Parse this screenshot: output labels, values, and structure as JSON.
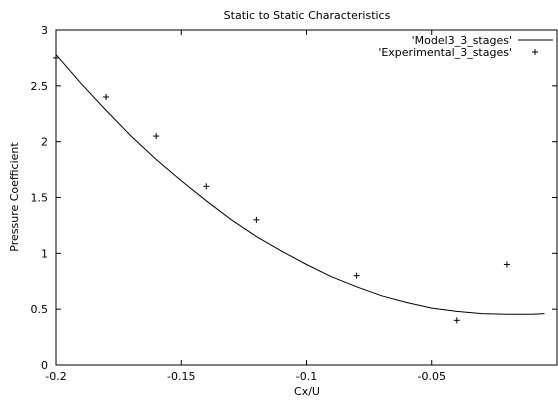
{
  "chart_data": {
    "type": "line",
    "title": "Static to Static Characteristics",
    "xlabel": "Cx/U",
    "ylabel": "Pressure Coefficient",
    "xlim": [
      -0.2,
      0.0
    ],
    "ylim": [
      0,
      3
    ],
    "x_ticks": [
      -0.2,
      -0.15,
      -0.1,
      -0.05
    ],
    "x_tick_labels": [
      "-0.2",
      "-0.15",
      "-0.1",
      "-0.05"
    ],
    "y_ticks": [
      0,
      0.5,
      1,
      1.5,
      2,
      2.5,
      3
    ],
    "y_tick_labels": [
      "0",
      "0.5",
      "1",
      "1.5",
      "2",
      "2.5",
      "3"
    ],
    "grid": false,
    "legend_position": "top-right",
    "series": [
      {
        "name": "'Model3_3_stages'",
        "style": "line",
        "color": "#000000",
        "x": [
          -0.2,
          -0.19,
          -0.18,
          -0.17,
          -0.16,
          -0.15,
          -0.14,
          -0.13,
          -0.12,
          -0.11,
          -0.1,
          -0.09,
          -0.08,
          -0.07,
          -0.06,
          -0.05,
          -0.04,
          -0.03,
          -0.02,
          -0.01,
          -0.005
        ],
        "values": [
          2.78,
          2.52,
          2.28,
          2.05,
          1.84,
          1.65,
          1.47,
          1.3,
          1.15,
          1.02,
          0.9,
          0.79,
          0.7,
          0.62,
          0.56,
          0.51,
          0.48,
          0.46,
          0.455,
          0.455,
          0.46
        ]
      },
      {
        "name": "'Experimental_3_stages'",
        "style": "points",
        "marker": "+",
        "color": "#000000",
        "x": [
          -0.2,
          -0.18,
          -0.16,
          -0.14,
          -0.12,
          -0.08,
          -0.04,
          -0.02
        ],
        "values": [
          2.75,
          2.4,
          2.05,
          1.6,
          1.3,
          0.8,
          0.4,
          0.9
        ]
      }
    ]
  }
}
